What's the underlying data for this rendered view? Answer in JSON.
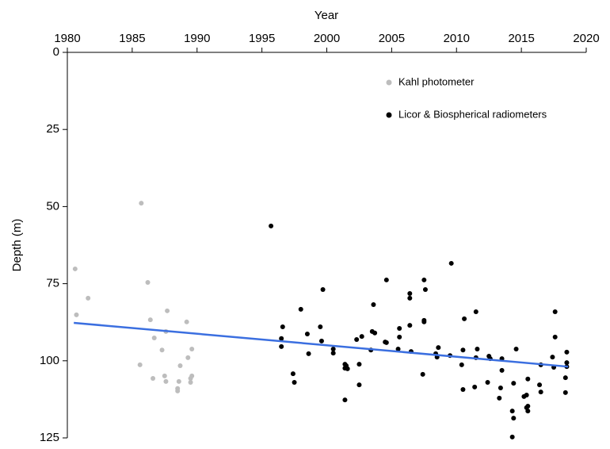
{
  "chart_data": {
    "type": "scatter",
    "xlabel": "Year",
    "ylabel": "Depth (m)",
    "xlim": [
      1980,
      2020
    ],
    "xticks": [
      1980,
      1985,
      1990,
      1995,
      2000,
      2005,
      2010,
      2015,
      2020
    ],
    "ylim": [
      0,
      125
    ],
    "yticks": [
      0,
      25,
      50,
      75,
      100,
      125
    ],
    "x_axis_position": "top",
    "y_inverted": true,
    "legend": "upper right",
    "series": [
      {
        "name": "Kahl photometer",
        "color": "#bdbdbd",
        "x": [
          1980.6,
          1980.7,
          1981.6,
          1985.7,
          1985.6,
          1986.2,
          1986.4,
          1986.6,
          1986.7,
          1987.3,
          1987.5,
          1987.6,
          1987.6,
          1987.7,
          1988.5,
          1988.6,
          1988.5,
          1988.7,
          1989.2,
          1989.3,
          1989.5,
          1989.5,
          1989.6,
          1989.6
        ],
        "values": [
          70.2,
          85.1,
          79.7,
          48.9,
          101.3,
          74.6,
          86.7,
          105.7,
          92.6,
          96.5,
          104.9,
          106.7,
          90.5,
          83.8,
          109,
          106.7,
          109.8,
          101.6,
          87.4,
          99,
          107,
          105.7,
          96.2,
          104.9
        ]
      },
      {
        "name": "Licor & Biospherical radiometers",
        "color": "#000000",
        "x": [
          1995.7,
          1996.6,
          1996.5,
          1996.5,
          1997.4,
          1997.5,
          1998.0,
          1998.5,
          1998.6,
          1999.5,
          1999.7,
          1999.6,
          2000.5,
          2000.5,
          2001.4,
          2001.4,
          2001.5,
          2001.4,
          2001.6,
          2002.3,
          2002.5,
          2002.5,
          2002.7,
          2003.4,
          2003.6,
          2003.5,
          2003.7,
          2004.5,
          2004.6,
          2004.6,
          2005.5,
          2005.6,
          2005.6,
          2006.4,
          2006.4,
          2006.4,
          2006.5,
          2007.4,
          2007.5,
          2007.5,
          2007.5,
          2007.6,
          2008.4,
          2008.5,
          2008.6,
          2009.5,
          2009.6,
          2010.4,
          2010.5,
          2010.5,
          2010.6,
          2011.4,
          2011.5,
          2011.6,
          2011.5,
          2012.4,
          2012.5,
          2012.6,
          2013.4,
          2013.3,
          2013.5,
          2013.5,
          2014.3,
          2014.4,
          2014.3,
          2014.4,
          2014.6,
          2015.2,
          2015.4,
          2015.5,
          2015.4,
          2015.5,
          2015.5,
          2016.4,
          2016.5,
          2016.5,
          2017.4,
          2017.5,
          2017.6,
          2017.6,
          2018.4,
          2018.4,
          2018.5,
          2018.5,
          2018.5
        ],
        "values": [
          56.3,
          89,
          92.8,
          95.4,
          104.2,
          107,
          83.3,
          91.3,
          97.7,
          89,
          76.9,
          93.6,
          96.2,
          97.5,
          101.1,
          102.4,
          101.6,
          112.7,
          102.6,
          93.1,
          101.1,
          107.8,
          92.1,
          96.5,
          81.8,
          90.5,
          91,
          93.9,
          94.1,
          73.8,
          96.2,
          89.5,
          92.3,
          78.2,
          79.7,
          88.5,
          97,
          104.4,
          86.9,
          87.4,
          73.8,
          76.9,
          97.7,
          98.8,
          95.7,
          98.3,
          68.4,
          101.3,
          109.3,
          96.5,
          86.4,
          108.5,
          84.1,
          96.2,
          99,
          107,
          98.5,
          99.3,
          108.8,
          112.1,
          103.1,
          99.3,
          116.3,
          118.6,
          124.7,
          107.3,
          96.2,
          111.6,
          115.2,
          116.3,
          111.1,
          114.7,
          105.9,
          107.8,
          110.1,
          101.3,
          98.8,
          102.1,
          92.3,
          84.1,
          110.3,
          105.5,
          100.6,
          101.9,
          97.2
        ]
      }
    ],
    "trend": {
      "color": "#3b6fe0",
      "x": [
        1980.5,
        2018.6
      ],
      "values": [
        87.7,
        101.9
      ]
    }
  }
}
